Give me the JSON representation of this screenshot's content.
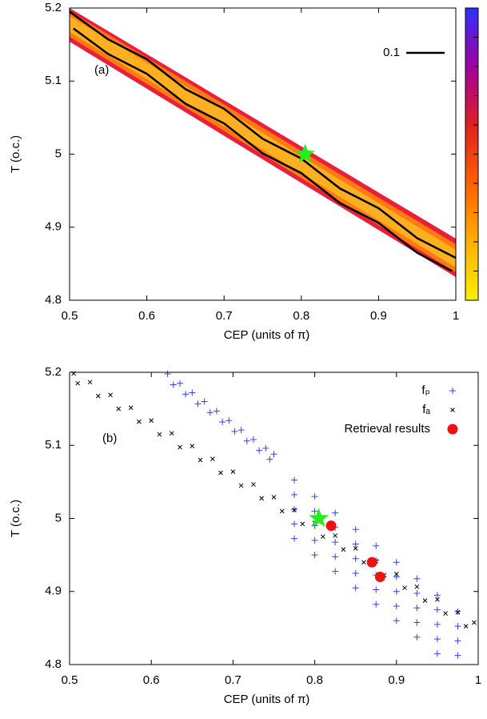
{
  "chart_data": [
    {
      "type": "heatmap",
      "panel_label": "(a)",
      "xlabel": "CEP (units of π)",
      "ylabel": "T (o.c.)",
      "xlim": [
        0.5,
        1
      ],
      "ylim": [
        4.8,
        5.2
      ],
      "xticks": [
        0.5,
        0.6,
        0.7,
        0.8,
        0.9,
        1
      ],
      "yticks": [
        4.8,
        4.9,
        5,
        5.1,
        5.2
      ],
      "colorbar_colors": [
        "#ffee00",
        "#ffb000",
        "#ff6000",
        "#e02020",
        "#a000a0",
        "#3030ff"
      ],
      "contours": {
        "name": "0.1",
        "color": "#000000",
        "lines": [
          {
            "x": [
              0.5,
              0.55,
              0.6,
              0.65,
              0.7,
              0.75,
              0.8,
              0.85,
              0.9,
              0.95,
              1
            ],
            "y": [
              5.195,
              5.157,
              5.13,
              5.089,
              5.062,
              5.021,
              4.994,
              4.953,
              4.926,
              4.885,
              4.858
            ]
          },
          {
            "x": [
              0.505,
              0.55,
              0.6,
              0.65,
              0.7,
              0.75,
              0.8,
              0.85,
              0.9,
              0.95,
              0.995
            ],
            "y": [
              5.172,
              5.137,
              5.11,
              5.069,
              5.042,
              5.001,
              4.974,
              4.933,
              4.906,
              4.865,
              4.84
            ]
          }
        ]
      },
      "star": {
        "x": 0.805,
        "y": 5.0,
        "color": "#22ee22"
      }
    },
    {
      "type": "scatter",
      "panel_label": "(b)",
      "xlabel": "CEP (units of π)",
      "ylabel": "T (o.c.)",
      "xlim": [
        0.5,
        1
      ],
      "ylim": [
        4.8,
        5.2
      ],
      "xticks": [
        0.5,
        0.6,
        0.7,
        0.8,
        0.9,
        1
      ],
      "yticks": [
        4.8,
        4.9,
        5,
        5.1,
        5.2
      ],
      "series": [
        {
          "name": "fₚ",
          "color": "#3344dd",
          "marker": "plus",
          "x": [
            0.62,
            0.635,
            0.65,
            0.665,
            0.68,
            0.695,
            0.71,
            0.725,
            0.74,
            0.75,
            0.627,
            0.642,
            0.657,
            0.672,
            0.687,
            0.702,
            0.717,
            0.732,
            0.745,
            0.775,
            0.775,
            0.775,
            0.775,
            0.775,
            0.8,
            0.8,
            0.8,
            0.8,
            0.8,
            0.825,
            0.825,
            0.825,
            0.825,
            0.825,
            0.85,
            0.85,
            0.85,
            0.85,
            0.85,
            0.875,
            0.875,
            0.875,
            0.875,
            0.875,
            0.9,
            0.9,
            0.9,
            0.9,
            0.9,
            0.925,
            0.925,
            0.925,
            0.925,
            0.925,
            0.95,
            0.95,
            0.95,
            0.95,
            0.95,
            0.975,
            0.975,
            0.975,
            0.975
          ],
          "y": [
            5.198,
            5.185,
            5.172,
            5.16,
            5.147,
            5.134,
            5.121,
            5.108,
            5.096,
            5.088,
            5.183,
            5.17,
            5.157,
            5.145,
            5.132,
            5.119,
            5.106,
            5.093,
            5.081,
            4.9725,
            4.9925,
            5.0125,
            5.0325,
            5.0525,
            4.95,
            4.97,
            4.99,
            5.01,
            5.03,
            4.9275,
            4.9475,
            4.9675,
            4.9875,
            5.0075,
            4.905,
            4.925,
            4.945,
            4.965,
            4.985,
            4.8825,
            4.9025,
            4.9225,
            4.9425,
            4.9625,
            4.86,
            4.88,
            4.9,
            4.92,
            4.94,
            4.8375,
            4.8575,
            4.8775,
            4.8975,
            4.9175,
            4.815,
            4.835,
            4.855,
            4.875,
            4.895,
            4.8125,
            4.8325,
            4.8525,
            4.8725
          ]
        },
        {
          "name": "fₐ",
          "color": "#000000",
          "marker": "cross",
          "x": [
            0.505,
            0.525,
            0.55,
            0.575,
            0.6,
            0.625,
            0.65,
            0.675,
            0.7,
            0.725,
            0.75,
            0.775,
            0.8,
            0.825,
            0.85,
            0.875,
            0.9,
            0.925,
            0.95,
            0.975,
            0.995,
            0.51,
            0.535,
            0.56,
            0.585,
            0.61,
            0.635,
            0.66,
            0.685,
            0.71,
            0.735,
            0.76,
            0.785,
            0.81,
            0.835,
            0.86,
            0.885,
            0.91,
            0.935,
            0.96,
            0.985
          ],
          "y": [
            5.1985,
            5.1865,
            5.169,
            5.1515,
            5.134,
            5.1165,
            5.099,
            5.0815,
            5.064,
            5.0465,
            5.029,
            5.0115,
            4.994,
            4.9765,
            4.959,
            4.9415,
            4.924,
            4.9065,
            4.889,
            4.8715,
            4.8575,
            5.185,
            5.1675,
            5.15,
            5.1325,
            5.115,
            5.0975,
            5.08,
            5.0625,
            5.045,
            5.0275,
            5.01,
            4.9925,
            4.975,
            4.9575,
            4.94,
            4.9225,
            4.905,
            4.8875,
            4.87,
            4.8525
          ]
        },
        {
          "name": "Retrieval results",
          "color": "#ee1111",
          "marker": "dot",
          "x": [
            0.82,
            0.87,
            0.88
          ],
          "y": [
            4.99,
            4.94,
            4.92
          ]
        }
      ],
      "star": {
        "x": 0.805,
        "y": 5.0,
        "color": "#22ee22"
      }
    }
  ]
}
